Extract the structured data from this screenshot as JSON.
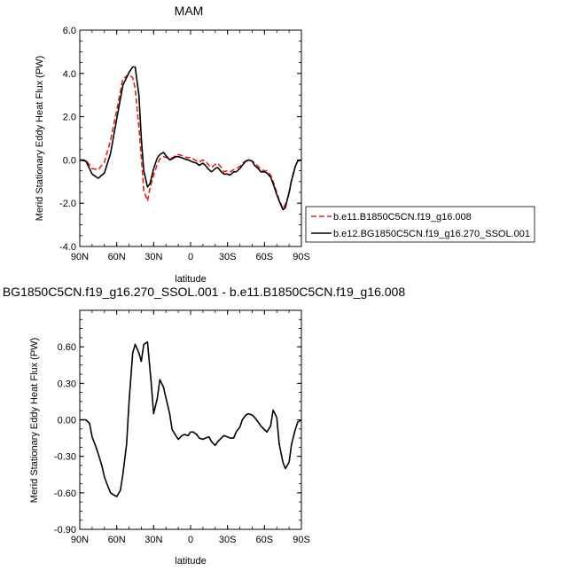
{
  "chart_data": [
    {
      "type": "line",
      "title": "MAM",
      "xlabel": "latitude",
      "ylabel": "Merid Stationary Eddy Heat Flux (PW)",
      "xlim": [
        90,
        -90
      ],
      "ylim": [
        -4.0,
        6.0
      ],
      "x_ticks": [
        90,
        60,
        30,
        0,
        -30,
        -60,
        -90
      ],
      "x_tick_labels": [
        "90N",
        "60N",
        "30N",
        "0",
        "30S",
        "60S",
        "90S"
      ],
      "y_ticks": [
        -4,
        -2,
        0,
        2,
        4,
        6
      ],
      "y_tick_labels": [
        "-4.0",
        "-2.0",
        "0.0",
        "2.0",
        "4.0",
        "6.0"
      ],
      "legend_placement": "outside-right",
      "x": [
        90,
        85,
        80,
        75,
        70,
        65,
        60,
        55,
        50,
        47,
        45,
        42,
        40,
        38,
        35,
        33,
        30,
        27,
        25,
        22,
        20,
        17,
        15,
        12,
        10,
        7,
        5,
        2,
        0,
        -2,
        -5,
        -7,
        -10,
        -12,
        -15,
        -17,
        -20,
        -22,
        -25,
        -27,
        -30,
        -32,
        -35,
        -37,
        -40,
        -42,
        -45,
        -47,
        -50,
        -52,
        -55,
        -57,
        -60,
        -62,
        -65,
        -67,
        -70,
        -72,
        -75,
        -77,
        -80,
        -82,
        -85,
        -87,
        -90
      ],
      "series": [
        {
          "name": "b.e11.B1850C5CN.f19_g16.008",
          "color": "#e0211f",
          "dash": "dashed",
          "values": [
            0.0,
            0.0,
            -0.4,
            -0.45,
            -0.1,
            0.9,
            2.3,
            3.75,
            3.95,
            3.8,
            3.3,
            1.5,
            0.1,
            -1.4,
            -1.9,
            -1.3,
            -0.7,
            -0.2,
            0.05,
            0.15,
            0.12,
            0.05,
            0.1,
            0.2,
            0.25,
            0.2,
            0.15,
            0.1,
            0.12,
            0.05,
            -0.05,
            -0.1,
            0.0,
            -0.05,
            -0.25,
            -0.35,
            -0.2,
            -0.15,
            -0.35,
            -0.55,
            -0.5,
            -0.55,
            -0.45,
            -0.4,
            -0.3,
            -0.15,
            -0.05,
            0.0,
            -0.05,
            -0.15,
            -0.3,
            -0.45,
            -0.5,
            -0.5,
            -0.7,
            -1.0,
            -1.5,
            -1.85,
            -2.25,
            -2.05,
            -1.6,
            -0.9,
            -0.3,
            -0.05,
            0.0
          ]
        },
        {
          "name": "b.e12.BG1850C5CN.f19_g16.270_SSOL.001",
          "color": "#000000",
          "dash": "solid",
          "values": [
            0.0,
            -0.05,
            -0.65,
            -0.85,
            -0.6,
            0.3,
            1.9,
            3.45,
            4.05,
            4.3,
            4.3,
            3.0,
            1.0,
            -0.5,
            -1.25,
            -1.1,
            -0.4,
            0.1,
            0.25,
            0.35,
            0.2,
            0.0,
            0.05,
            0.15,
            0.15,
            0.1,
            0.05,
            0.0,
            -0.05,
            -0.1,
            -0.15,
            -0.25,
            -0.15,
            -0.25,
            -0.45,
            -0.55,
            -0.4,
            -0.35,
            -0.55,
            -0.65,
            -0.65,
            -0.7,
            -0.55,
            -0.55,
            -0.4,
            -0.25,
            -0.05,
            0.0,
            -0.05,
            -0.25,
            -0.4,
            -0.55,
            -0.55,
            -0.6,
            -0.8,
            -1.1,
            -1.6,
            -1.9,
            -2.3,
            -2.2,
            -1.5,
            -0.95,
            -0.3,
            -0.05,
            0.0
          ]
        }
      ]
    },
    {
      "type": "line",
      "title": "BG1850C5CN.f19_g16.270_SSOL.001 - b.e11.B1850C5CN.f19_g16.008",
      "xlabel": "latitude",
      "ylabel": "Merid Stationary Eddy Heat Flux (PW)",
      "xlim": [
        90,
        -90
      ],
      "ylim": [
        -0.9,
        0.9
      ],
      "x_ticks": [
        90,
        60,
        30,
        0,
        -30,
        -60,
        -90
      ],
      "x_tick_labels": [
        "90N",
        "60N",
        "30N",
        "0",
        "30S",
        "60S",
        "90S"
      ],
      "y_ticks": [
        -0.9,
        -0.6,
        -0.3,
        0.0,
        0.3,
        0.6
      ],
      "y_tick_labels": [
        "-0.90",
        "-0.60",
        "-0.30",
        "0.00",
        "0.30",
        "0.60"
      ],
      "x": [
        90,
        87,
        85,
        82,
        80,
        77,
        75,
        72,
        70,
        67,
        65,
        62,
        60,
        57,
        55,
        52,
        50,
        47,
        45,
        42,
        40,
        38,
        35,
        32,
        30,
        27,
        25,
        22,
        20,
        17,
        15,
        12,
        10,
        7,
        5,
        2,
        0,
        -2,
        -5,
        -7,
        -10,
        -12,
        -15,
        -17,
        -20,
        -22,
        -25,
        -27,
        -30,
        -32,
        -35,
        -37,
        -40,
        -42,
        -45,
        -47,
        -50,
        -52,
        -55,
        -57,
        -60,
        -62,
        -65,
        -67,
        -70,
        -72,
        -75,
        -77,
        -80,
        -82,
        -85,
        -87,
        -90
      ],
      "series": [
        {
          "name": "",
          "color": "#000000",
          "dash": "solid",
          "values": [
            0.0,
            0.0,
            0.0,
            -0.03,
            -0.14,
            -0.22,
            -0.28,
            -0.38,
            -0.47,
            -0.55,
            -0.6,
            -0.62,
            -0.63,
            -0.58,
            -0.45,
            -0.2,
            0.15,
            0.55,
            0.62,
            0.55,
            0.48,
            0.62,
            0.64,
            0.3,
            0.05,
            0.18,
            0.33,
            0.27,
            0.18,
            0.05,
            -0.08,
            -0.13,
            -0.16,
            -0.13,
            -0.12,
            -0.13,
            -0.1,
            -0.1,
            -0.12,
            -0.15,
            -0.16,
            -0.15,
            -0.14,
            -0.18,
            -0.21,
            -0.18,
            -0.15,
            -0.13,
            -0.14,
            -0.15,
            -0.15,
            -0.1,
            -0.06,
            0.0,
            0.04,
            0.05,
            0.04,
            0.02,
            -0.02,
            -0.05,
            -0.08,
            -0.1,
            -0.05,
            0.08,
            0.02,
            -0.2,
            -0.35,
            -0.4,
            -0.35,
            -0.2,
            -0.08,
            -0.02,
            0.0
          ]
        }
      ]
    }
  ]
}
